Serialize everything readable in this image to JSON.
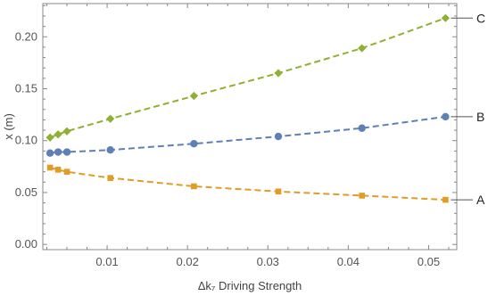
{
  "chart_data": {
    "type": "line",
    "title": "",
    "xlabel": "Δk₇ Driving Strength",
    "ylabel": "x (m)",
    "xlim": [
      0.002,
      0.0535
    ],
    "ylim": [
      -0.005,
      0.232
    ],
    "xticks": [
      0.01,
      0.02,
      0.03,
      0.04,
      0.05
    ],
    "xtick_labels": [
      "0.01",
      "0.02",
      "0.03",
      "0.04",
      "0.05"
    ],
    "yticks": [
      0.0,
      0.05,
      0.1,
      0.15,
      0.2
    ],
    "ytick_labels": [
      "0.00",
      "0.05",
      "0.10",
      "0.15",
      "0.20"
    ],
    "grid": false,
    "series": [
      {
        "name": "C",
        "color": "#8fb032",
        "marker": "diamond",
        "x": [
          0.0029,
          0.0039,
          0.005,
          0.0104,
          0.0208,
          0.0313,
          0.0417,
          0.0521
        ],
        "y": [
          0.103,
          0.106,
          0.109,
          0.121,
          0.143,
          0.165,
          0.189,
          0.218
        ]
      },
      {
        "name": "B",
        "color": "#5e81b5",
        "marker": "circle",
        "x": [
          0.0029,
          0.0039,
          0.005,
          0.0104,
          0.0208,
          0.0313,
          0.0417,
          0.0521
        ],
        "y": [
          0.088,
          0.089,
          0.089,
          0.091,
          0.097,
          0.104,
          0.112,
          0.123
        ]
      },
      {
        "name": "A",
        "color": "#e19c24",
        "marker": "square",
        "x": [
          0.0029,
          0.0039,
          0.005,
          0.0104,
          0.0208,
          0.0313,
          0.0417,
          0.0521
        ],
        "y": [
          0.074,
          0.072,
          0.07,
          0.064,
          0.056,
          0.051,
          0.047,
          0.043
        ]
      }
    ]
  }
}
